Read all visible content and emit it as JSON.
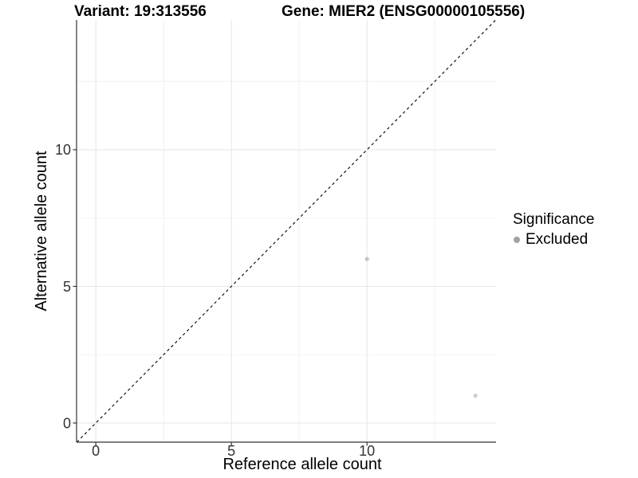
{
  "chart_data": {
    "type": "scatter",
    "title_left": "Variant: 19:313556",
    "title_right": "Gene: MIER2 (ENSG00000105556)",
    "xlabel": "Reference allele count",
    "ylabel": "Alternative allele count",
    "xlim": [
      -0.71,
      14.76
    ],
    "ylim": [
      -0.7,
      14.75
    ],
    "x_ticks": {
      "major": [
        0,
        5,
        10
      ],
      "labels": [
        "0",
        "5",
        "10"
      ],
      "minor": [
        2.5,
        7.5,
        12.5
      ]
    },
    "y_ticks": {
      "major": [
        0,
        5,
        10
      ],
      "labels": [
        "0",
        "5",
        "10"
      ],
      "minor": [
        2.5,
        7.5,
        12.5
      ]
    },
    "grid": {
      "show": true,
      "major_color": "#e5e5e5",
      "minor_color": "#f2f2f2"
    },
    "axis_color": "#333333",
    "identity_line": {
      "slope": 1,
      "intercept": 0,
      "style": "dashed",
      "color": "#000000"
    },
    "points": [
      {
        "x": 10,
        "y": 6,
        "color": "#c5c5c5",
        "label": "Excluded"
      },
      {
        "x": 14,
        "y": 1,
        "color": "#cdcdcd",
        "label": "Excluded"
      }
    ],
    "point_radius": 2.6,
    "legend": {
      "title": "Significance",
      "position": "right",
      "items": [
        {
          "label": "Excluded",
          "color": "#a2a2a2"
        }
      ]
    }
  }
}
